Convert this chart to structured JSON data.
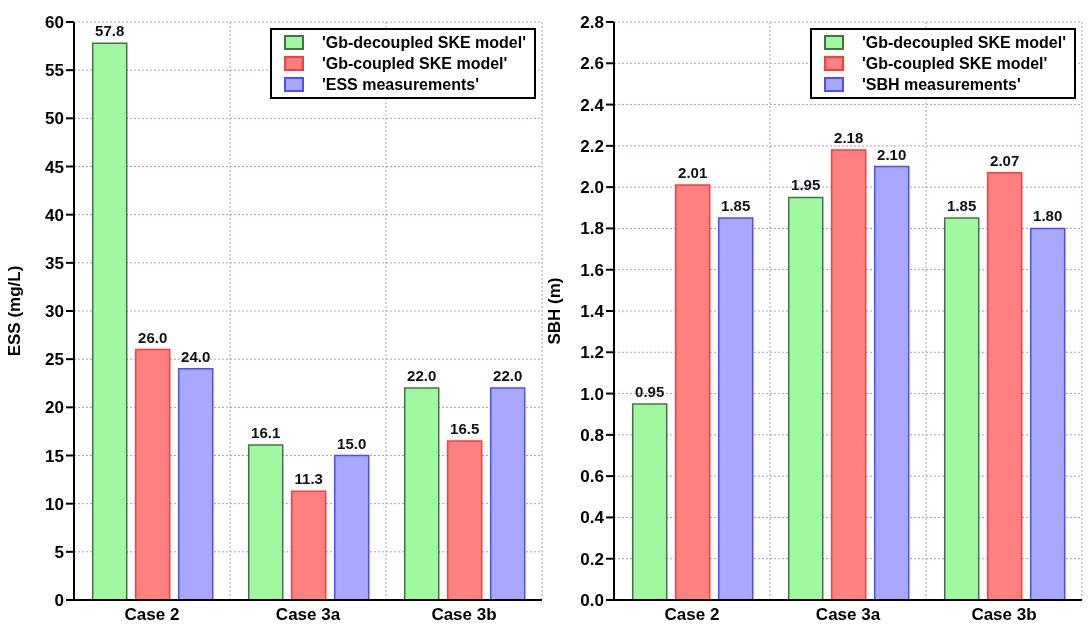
{
  "chart_data": [
    {
      "type": "bar",
      "ylabel": "ESS (mg/L)",
      "categories": [
        "Case 2",
        "Case 3a",
        "Case 3b"
      ],
      "series": [
        {
          "name": "'Gb-decoupled SKE model'",
          "color": "#a0f8a0",
          "values": [
            57.8,
            16.1,
            22.0
          ],
          "value_labels": [
            "57.8",
            "16.1",
            "22.0"
          ]
        },
        {
          "name": "'Gb-coupled SKE model'",
          "color": "#ff8080",
          "values": [
            26.0,
            11.3,
            16.5
          ],
          "value_labels": [
            "26.0",
            "11.3",
            "16.5"
          ]
        },
        {
          "name": "'ESS measurements'",
          "color": "#a8a8ff",
          "values": [
            24.0,
            15.0,
            22.0
          ],
          "value_labels": [
            "24.0",
            "15.0",
            "22.0"
          ]
        }
      ],
      "ylim": [
        0,
        60
      ],
      "yticks": [
        0,
        5,
        10,
        15,
        20,
        25,
        30,
        35,
        40,
        45,
        50,
        55,
        60
      ],
      "grid": true,
      "legend": "top right"
    },
    {
      "type": "bar",
      "ylabel": "SBH (m)",
      "categories": [
        "Case 2",
        "Case 3a",
        "Case 3b"
      ],
      "series": [
        {
          "name": "'Gb-decoupled SKE model'",
          "color": "#a0f8a0",
          "values": [
            0.95,
            1.95,
            1.85
          ],
          "value_labels": [
            "0.95",
            "1.95",
            "1.85"
          ]
        },
        {
          "name": "'Gb-coupled SKE model'",
          "color": "#ff8080",
          "values": [
            2.01,
            2.18,
            2.07
          ],
          "value_labels": [
            "2.01",
            "2.18",
            "2.07"
          ]
        },
        {
          "name": "'SBH measurements'",
          "color": "#a8a8ff",
          "values": [
            1.85,
            2.1,
            1.8
          ],
          "value_labels": [
            "1.85",
            "2.10",
            "1.80"
          ]
        }
      ],
      "ylim": [
        0,
        2.8
      ],
      "yticks": [
        {
          "value": 0,
          "label": "0.0"
        },
        0.2,
        0.4,
        0.6,
        0.8,
        {
          "value": 1,
          "label": "1.0"
        },
        1.2,
        1.4,
        1.6,
        1.8,
        {
          "value": 2,
          "label": "2.0"
        },
        2.2,
        2.4,
        2.6,
        2.8
      ],
      "grid": true,
      "legend": "top right"
    }
  ]
}
